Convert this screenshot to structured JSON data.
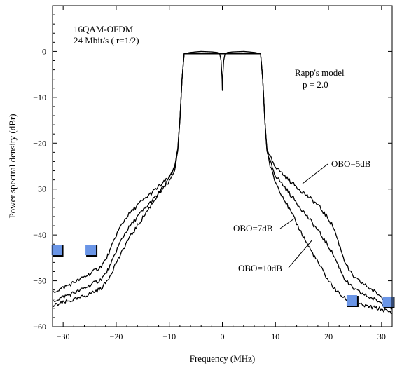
{
  "chart_data": {
    "type": "line",
    "title": "",
    "xlabel": "Frequency (MHz)",
    "ylabel": "Power spectral density (dBr)",
    "xlim": [
      -32,
      32
    ],
    "ylim": [
      -60,
      10
    ],
    "xticks": [
      -30,
      -20,
      -10,
      0,
      10,
      20,
      30
    ],
    "yticks": [
      0,
      -10,
      -20,
      -30,
      -40,
      -50,
      -60
    ],
    "grid": false,
    "legend": "none",
    "annotations": {
      "signal_line1": "16QAM-OFDM",
      "signal_line2": "24 Mbit/s ( r=1/2)",
      "model_line1": "Rapp's model",
      "model_line2": "p = 2.0",
      "obo5": "OBO=5dB",
      "obo7": "OBO=7dB",
      "obo10": "OBO=10dB"
    },
    "series": [
      {
        "id": "obo5",
        "x": [
          -32,
          -30,
          -27,
          -25,
          -23,
          -22,
          -21,
          -20,
          -19,
          -18,
          -16,
          -14,
          -12,
          -10,
          -9,
          -8.4,
          -8.0,
          -7.6,
          -7.2,
          7.2,
          7.6,
          8.0,
          8.4,
          9,
          10,
          12,
          14,
          16,
          18,
          20,
          21,
          22,
          23,
          24,
          25,
          27,
          30,
          32
        ],
        "y": [
          -52.5,
          -51.5,
          -49.8,
          -48.5,
          -47,
          -45.5,
          -43,
          -40,
          -37.8,
          -36,
          -33.5,
          -31.5,
          -29.5,
          -27.5,
          -25,
          -21.5,
          -15,
          -6,
          -0.5,
          -0.5,
          -6,
          -15,
          -21.5,
          -23,
          -25,
          -27.5,
          -29.5,
          -31.5,
          -33.5,
          -36.5,
          -38.5,
          -42,
          -45.5,
          -48,
          -49.5,
          -51,
          -53.5,
          -55
        ]
      },
      {
        "id": "obo7",
        "x": [
          -32,
          -30,
          -27,
          -25,
          -23,
          -22,
          -21,
          -20,
          -19,
          -18,
          -16,
          -14,
          -12,
          -10,
          -9,
          -8.4,
          -8.0,
          -7.6,
          -7.2,
          7.2,
          7.6,
          8.0,
          8.4,
          9,
          10,
          12,
          14,
          16,
          18,
          20,
          21,
          22,
          23,
          24,
          25,
          27,
          30,
          32
        ],
        "y": [
          -54.5,
          -53.5,
          -52.2,
          -51,
          -49.8,
          -48.5,
          -46.5,
          -43.5,
          -41,
          -39,
          -36,
          -33.5,
          -31,
          -28.5,
          -25.8,
          -22,
          -15,
          -6,
          -0.5,
          -0.5,
          -6,
          -15,
          -22,
          -24,
          -27,
          -30,
          -33,
          -36,
          -39,
          -42.5,
          -44.5,
          -47,
          -49.5,
          -51,
          -52,
          -53.2,
          -54.8,
          -56
        ]
      },
      {
        "id": "obo10",
        "x": [
          -32,
          -30,
          -27,
          -25,
          -23,
          -22,
          -21,
          -20,
          -19,
          -18,
          -16,
          -14,
          -12,
          -10,
          -9,
          -8.4,
          -8.0,
          -7.6,
          -7.2,
          7.2,
          7.6,
          8.0,
          8.4,
          9,
          10,
          12,
          14,
          16,
          18,
          20,
          21,
          22,
          23,
          24,
          25,
          27,
          30,
          32
        ],
        "y": [
          -55.5,
          -54.8,
          -53.8,
          -52.8,
          -51.8,
          -50.5,
          -48.5,
          -46,
          -44,
          -41.5,
          -38,
          -34.5,
          -31,
          -27.8,
          -25,
          -21.5,
          -15,
          -6,
          -0.5,
          -0.5,
          -6,
          -15,
          -21.5,
          -25,
          -28.5,
          -33,
          -37.5,
          -42,
          -46,
          -50,
          -51.5,
          -52.8,
          -53.8,
          -54.5,
          -55,
          -55.5,
          -56.2,
          -57
        ]
      },
      {
        "id": "inband",
        "x": [
          -7.2,
          -6,
          -4,
          -2,
          -1,
          -0.5,
          -0.25,
          -0.05,
          0,
          0.05,
          0.25,
          0.5,
          1,
          2,
          4,
          6,
          7.2
        ],
        "y": [
          -0.5,
          -0.2,
          0,
          -0.1,
          -0.2,
          -0.5,
          -2,
          -6,
          -8.5,
          -6,
          -2,
          -0.5,
          -0.2,
          -0.1,
          0,
          -0.2,
          -0.5
        ]
      }
    ]
  },
  "colors": {
    "marker": "#6a95e6",
    "line": "#000000"
  }
}
